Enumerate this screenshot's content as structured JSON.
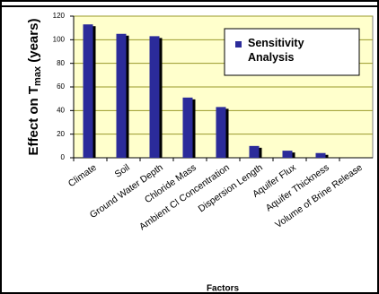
{
  "chart_data": {
    "type": "bar",
    "x_label": "Factors",
    "y_label": {
      "text": "Effect on T",
      "sub": "max",
      "rest": " (years)"
    },
    "categories": [
      "Climate",
      "Soil",
      "Ground Water Depth",
      "Chloride Mass",
      "Ambient Cl Concentration",
      "Dispersion Length",
      "Aquifer Flux",
      "Aquifer Thickness",
      "Volume of Brine Release"
    ],
    "series": [
      {
        "name": "Sensitivity Analysis",
        "color": "#2b2b9a",
        "values": [
          113,
          105,
          103,
          51,
          43,
          10,
          6,
          4,
          0
        ]
      }
    ],
    "ylim": [
      0,
      120
    ],
    "yticks": [
      0,
      20,
      40,
      60,
      80,
      100,
      120
    ],
    "grid": true,
    "legend": "upper right"
  }
}
